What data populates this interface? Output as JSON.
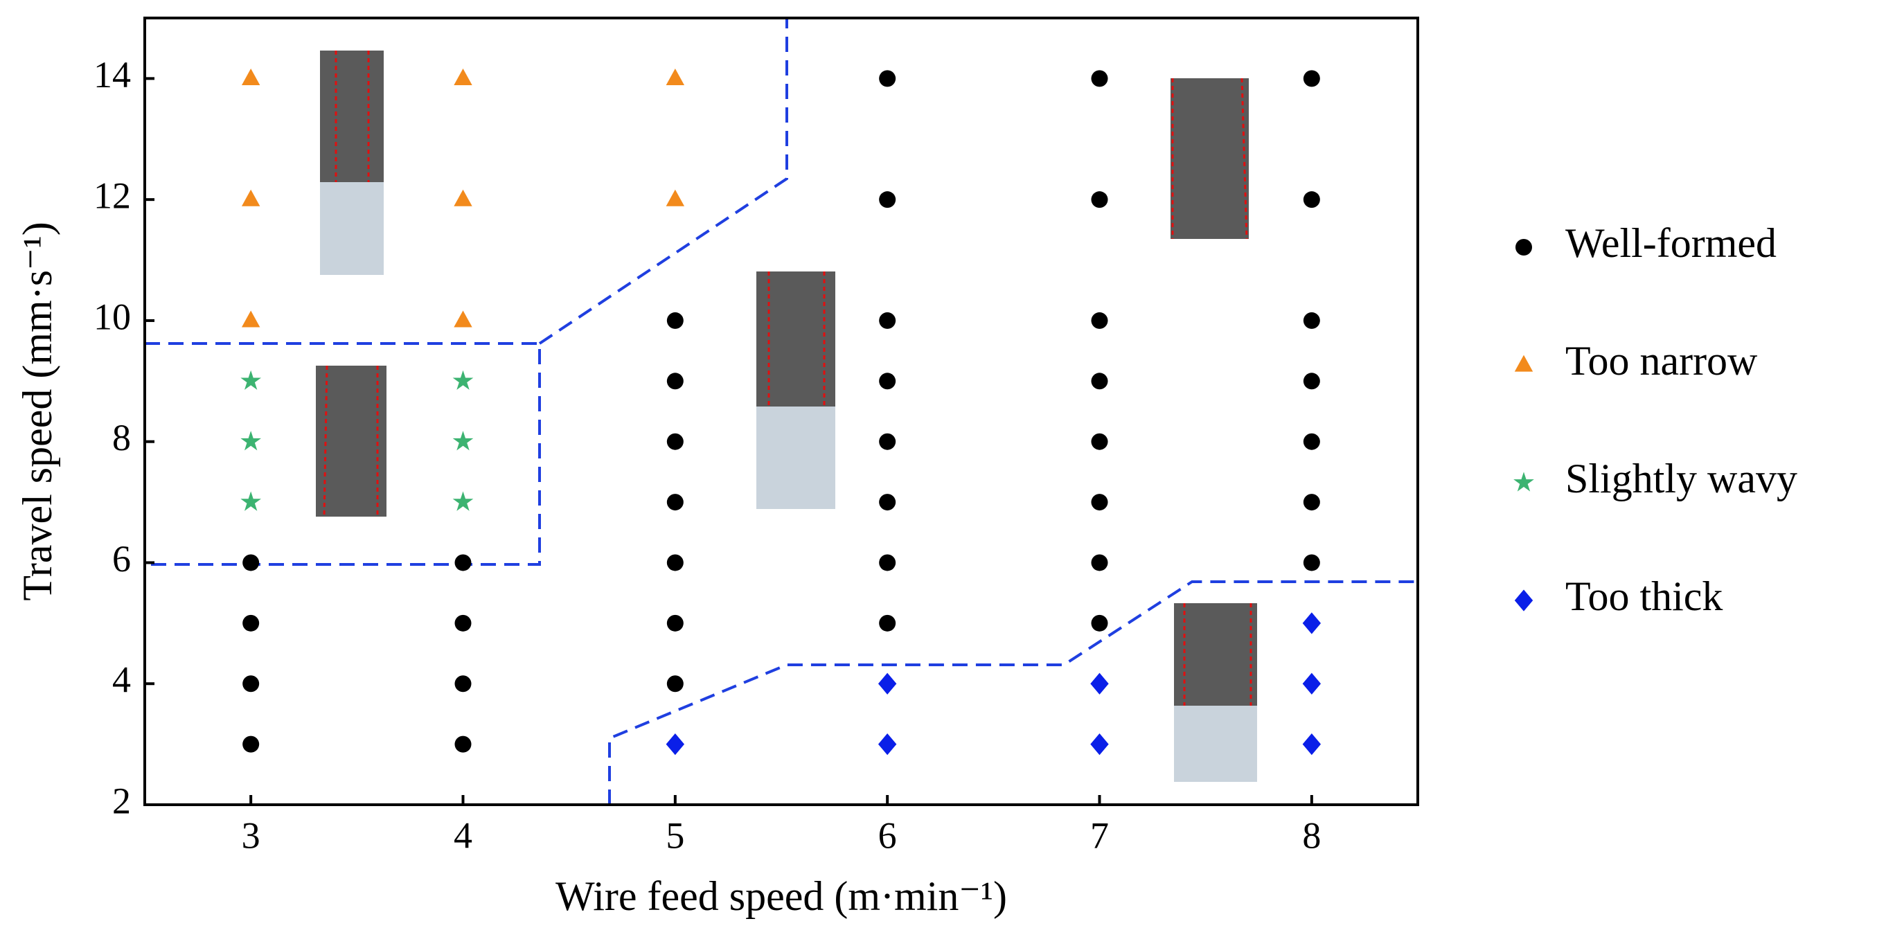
{
  "chart_data": {
    "type": "scatter",
    "xlabel": "Wire feed speed (m·min⁻¹)",
    "ylabel": "Travel speed (mm·s⁻¹)",
    "xlim": [
      2.5,
      8.5
    ],
    "xticks": [
      3,
      4,
      5,
      6,
      7,
      8
    ],
    "ylim": [
      2,
      15
    ],
    "yticks": [
      2,
      4,
      6,
      8,
      10,
      12,
      14
    ],
    "legend": "right",
    "series": [
      {
        "name": "Well-formed",
        "color": "#000000",
        "marker": "circle",
        "x": [
          3,
          3,
          3,
          3,
          4,
          4,
          4,
          4,
          5,
          5,
          5,
          5,
          5,
          5,
          5,
          6,
          6,
          6,
          6,
          6,
          6,
          6,
          6,
          7,
          7,
          7,
          7,
          7,
          7,
          7,
          7,
          8,
          8,
          8,
          8,
          8,
          8,
          8
        ],
        "y": [
          3,
          4,
          5,
          6,
          3,
          4,
          5,
          6,
          4,
          5,
          6,
          7,
          8,
          9,
          10,
          5,
          6,
          7,
          8,
          9,
          10,
          12,
          14,
          5,
          6,
          7,
          8,
          9,
          10,
          12,
          14,
          6,
          7,
          8,
          9,
          10,
          12,
          14
        ]
      },
      {
        "name": "Too narrow",
        "color": "#f28a1c",
        "marker": "triangle",
        "x": [
          3,
          3,
          3,
          4,
          4,
          4,
          5,
          5
        ],
        "y": [
          10,
          12,
          14,
          10,
          12,
          14,
          12,
          14
        ]
      },
      {
        "name": "Slightly wavy",
        "color": "#3cb371",
        "marker": "star",
        "x": [
          3,
          3,
          3,
          4,
          4,
          4
        ],
        "y": [
          7,
          8,
          9,
          7,
          8,
          9
        ]
      },
      {
        "name": "Too thick",
        "color": "#0a1fe8",
        "marker": "diamond",
        "x": [
          5,
          6,
          6,
          7,
          7,
          8,
          8,
          8
        ],
        "y": [
          3,
          3,
          4,
          3,
          4,
          3,
          4,
          5
        ]
      }
    ]
  }
}
